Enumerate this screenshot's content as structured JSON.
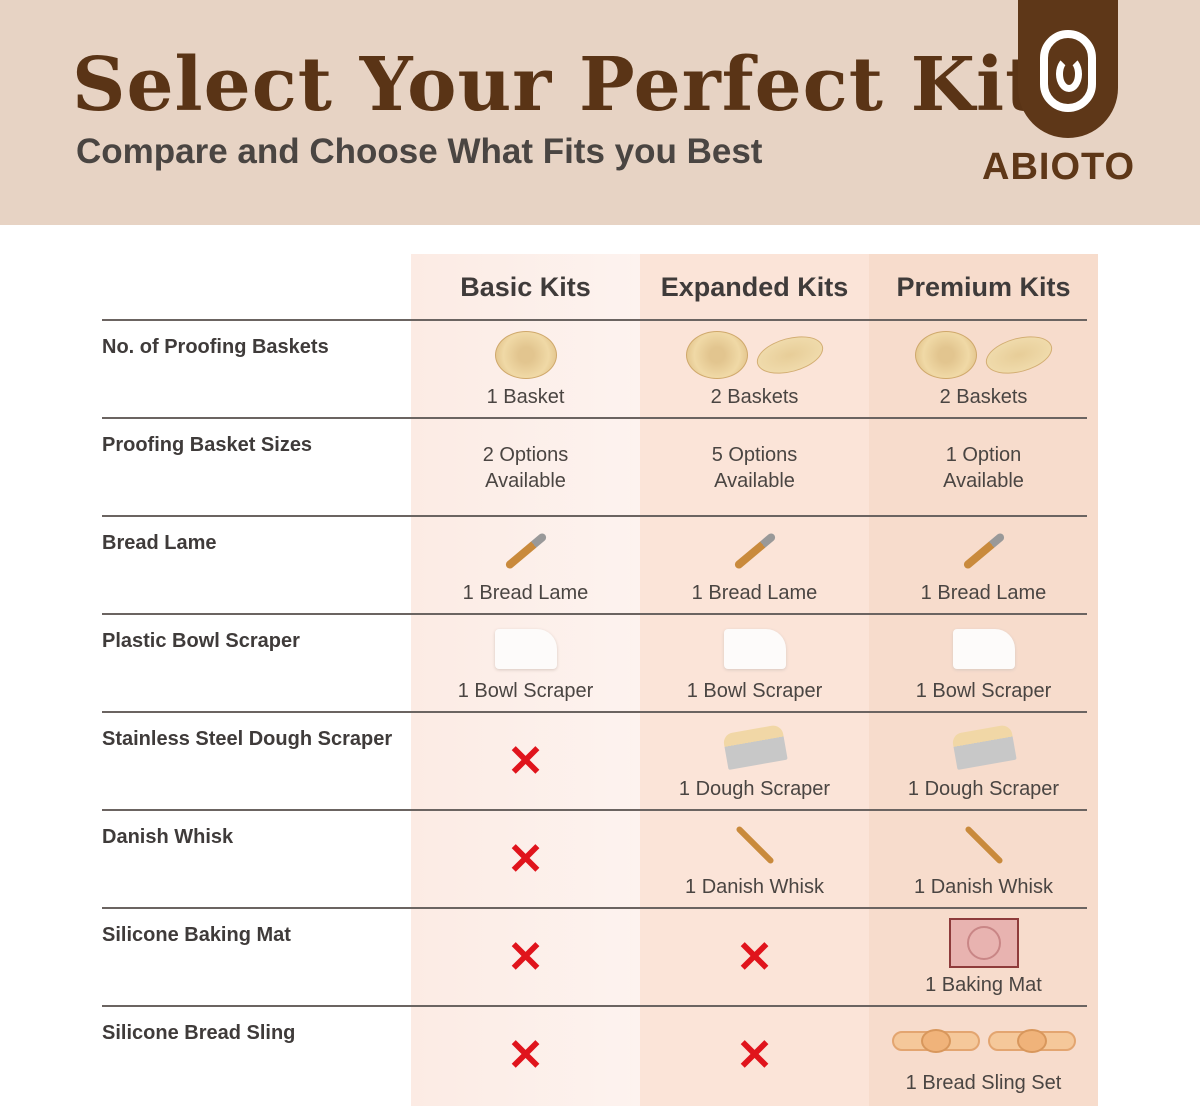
{
  "header": {
    "title": "Select Your Perfect Kit",
    "subtitle": "Compare and Choose What Fits you Best",
    "brand": "ABIOTO"
  },
  "colors": {
    "brand_brown": "#5e3718",
    "header_bg": "#e7d3c4",
    "cross": "#e0141c"
  },
  "columns": [
    "Basic Kits",
    "Expanded Kits",
    "Premium Kits"
  ],
  "rows": [
    {
      "label": "No. of Proofing Baskets",
      "cells": [
        {
          "icon": "round-basket",
          "text": "1 Basket"
        },
        {
          "icon": "round-and-oval-basket",
          "text": "2 Baskets"
        },
        {
          "icon": "round-and-oval-basket",
          "text": "2 Baskets"
        }
      ]
    },
    {
      "label": "Proofing Basket Sizes",
      "cells": [
        {
          "text": "2 Options\nAvailable"
        },
        {
          "text": "5 Options\nAvailable"
        },
        {
          "text": "1 Option\nAvailable"
        }
      ]
    },
    {
      "label": "Bread Lame",
      "cells": [
        {
          "icon": "bread-lame",
          "text": "1 Bread Lame"
        },
        {
          "icon": "bread-lame",
          "text": "1 Bread Lame"
        },
        {
          "icon": "bread-lame",
          "text": "1 Bread Lame"
        }
      ]
    },
    {
      "label": "Plastic Bowl Scraper",
      "cells": [
        {
          "icon": "bowl-scraper",
          "text": "1 Bowl Scraper"
        },
        {
          "icon": "bowl-scraper",
          "text": "1 Bowl Scraper"
        },
        {
          "icon": "bowl-scraper",
          "text": "1 Bowl Scraper"
        }
      ]
    },
    {
      "label": "Stainless Steel Dough Scraper",
      "cells": [
        {
          "icon": "cross"
        },
        {
          "icon": "dough-scraper",
          "text": "1 Dough Scraper"
        },
        {
          "icon": "dough-scraper",
          "text": "1 Dough Scraper"
        }
      ]
    },
    {
      "label": "Danish Whisk",
      "cells": [
        {
          "icon": "cross"
        },
        {
          "icon": "danish-whisk",
          "text": "1 Danish Whisk"
        },
        {
          "icon": "danish-whisk",
          "text": "1 Danish Whisk"
        }
      ]
    },
    {
      "label": "Silicone Baking Mat",
      "cells": [
        {
          "icon": "cross"
        },
        {
          "icon": "cross"
        },
        {
          "icon": "baking-mat",
          "text": "1 Baking Mat"
        }
      ]
    },
    {
      "label": "Silicone Bread Sling",
      "cells": [
        {
          "icon": "cross"
        },
        {
          "icon": "cross"
        },
        {
          "icon": "bread-sling",
          "text": "1 Bread Sling Set"
        }
      ]
    }
  ]
}
